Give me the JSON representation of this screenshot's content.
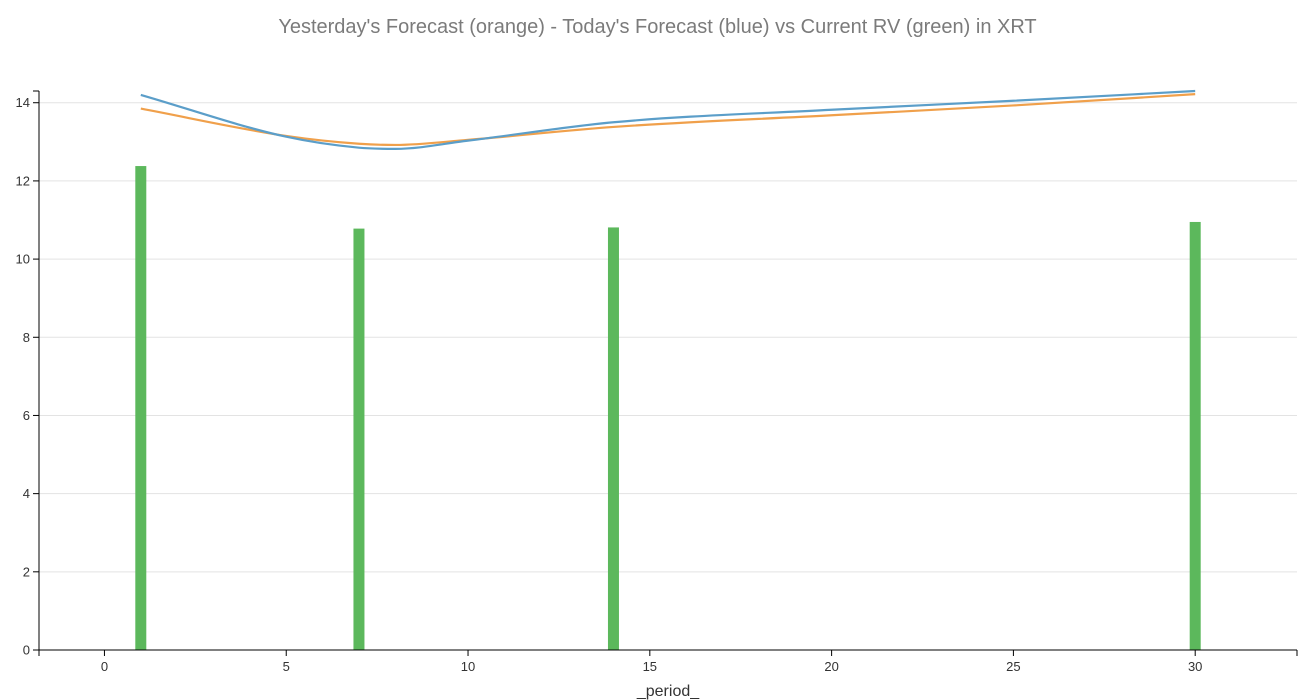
{
  "chart_data": {
    "type": "line",
    "title": "Yesterday's Forecast (orange) - Today's Forecast (blue) vs Current RV (green) in XRT",
    "xlabel": "_period_",
    "ylabel": "",
    "xlim": [
      -1.8,
      32.8
    ],
    "ylim": [
      0,
      14.3
    ],
    "x_ticks": [
      0,
      5,
      10,
      15,
      20,
      25,
      30
    ],
    "y_ticks": [
      0,
      2,
      4,
      6,
      8,
      10,
      12,
      14
    ],
    "grid": "horizontal",
    "legend": "none",
    "series": [
      {
        "kind": "line",
        "color": "#f0a04b",
        "x": [
          1,
          5,
          7,
          8,
          10,
          14,
          20,
          25,
          30
        ],
        "y": [
          13.85,
          13.15,
          12.95,
          12.92,
          13.05,
          13.38,
          13.68,
          13.93,
          14.22
        ]
      },
      {
        "kind": "line",
        "color": "#5b9ec9",
        "x": [
          1,
          5,
          7,
          8,
          10,
          14,
          20,
          25,
          30
        ],
        "y": [
          14.2,
          13.13,
          12.85,
          12.82,
          13.03,
          13.5,
          13.82,
          14.05,
          14.3
        ]
      },
      {
        "kind": "bar",
        "color": "#5cb85c",
        "x": [
          1,
          7,
          14,
          30
        ],
        "y": [
          12.38,
          10.78,
          10.81,
          10.95
        ]
      }
    ]
  }
}
